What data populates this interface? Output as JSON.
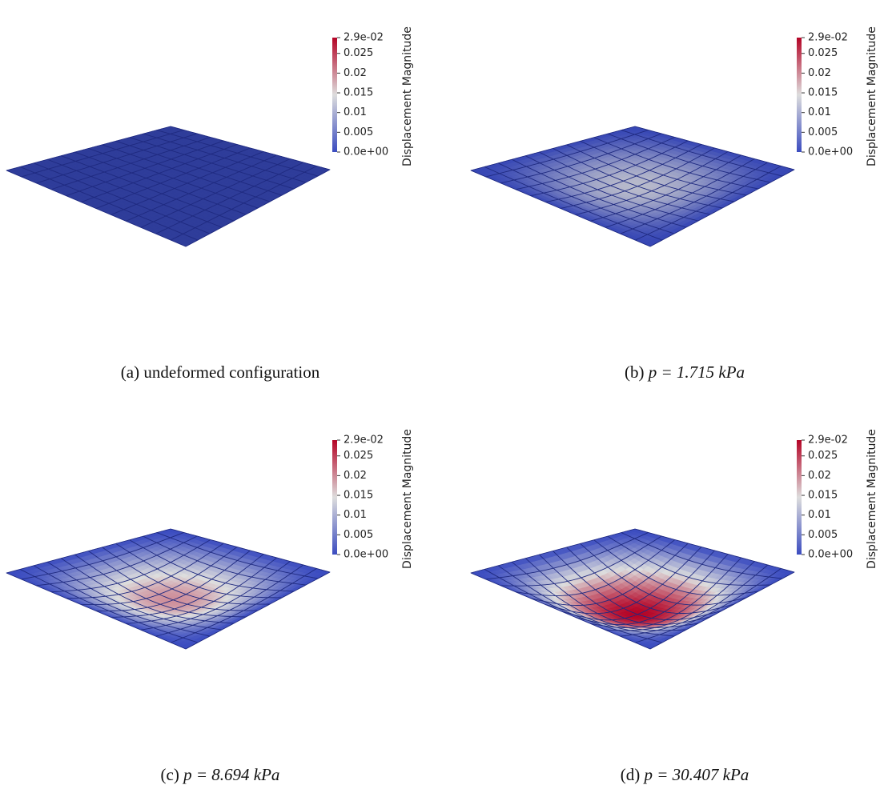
{
  "colorbar": {
    "title": "Displacement Magnitude",
    "range": [
      0,
      0.029
    ],
    "ticks": [
      {
        "value": 0.029,
        "label": "2.9e-02"
      },
      0.025,
      0.02,
      0.015,
      0.01,
      0.005,
      {
        "value": 0,
        "label": "0.0e+00"
      }
    ]
  },
  "panels": [
    {
      "label": "(a)",
      "text": "undeformed configuration"
    },
    {
      "label": "(b)",
      "math": "p = 1.715 kPa"
    },
    {
      "label": "(c)",
      "math": "p = 8.694 kPa"
    },
    {
      "label": "(d)",
      "math": "p = 30.407 kPa"
    }
  ]
}
